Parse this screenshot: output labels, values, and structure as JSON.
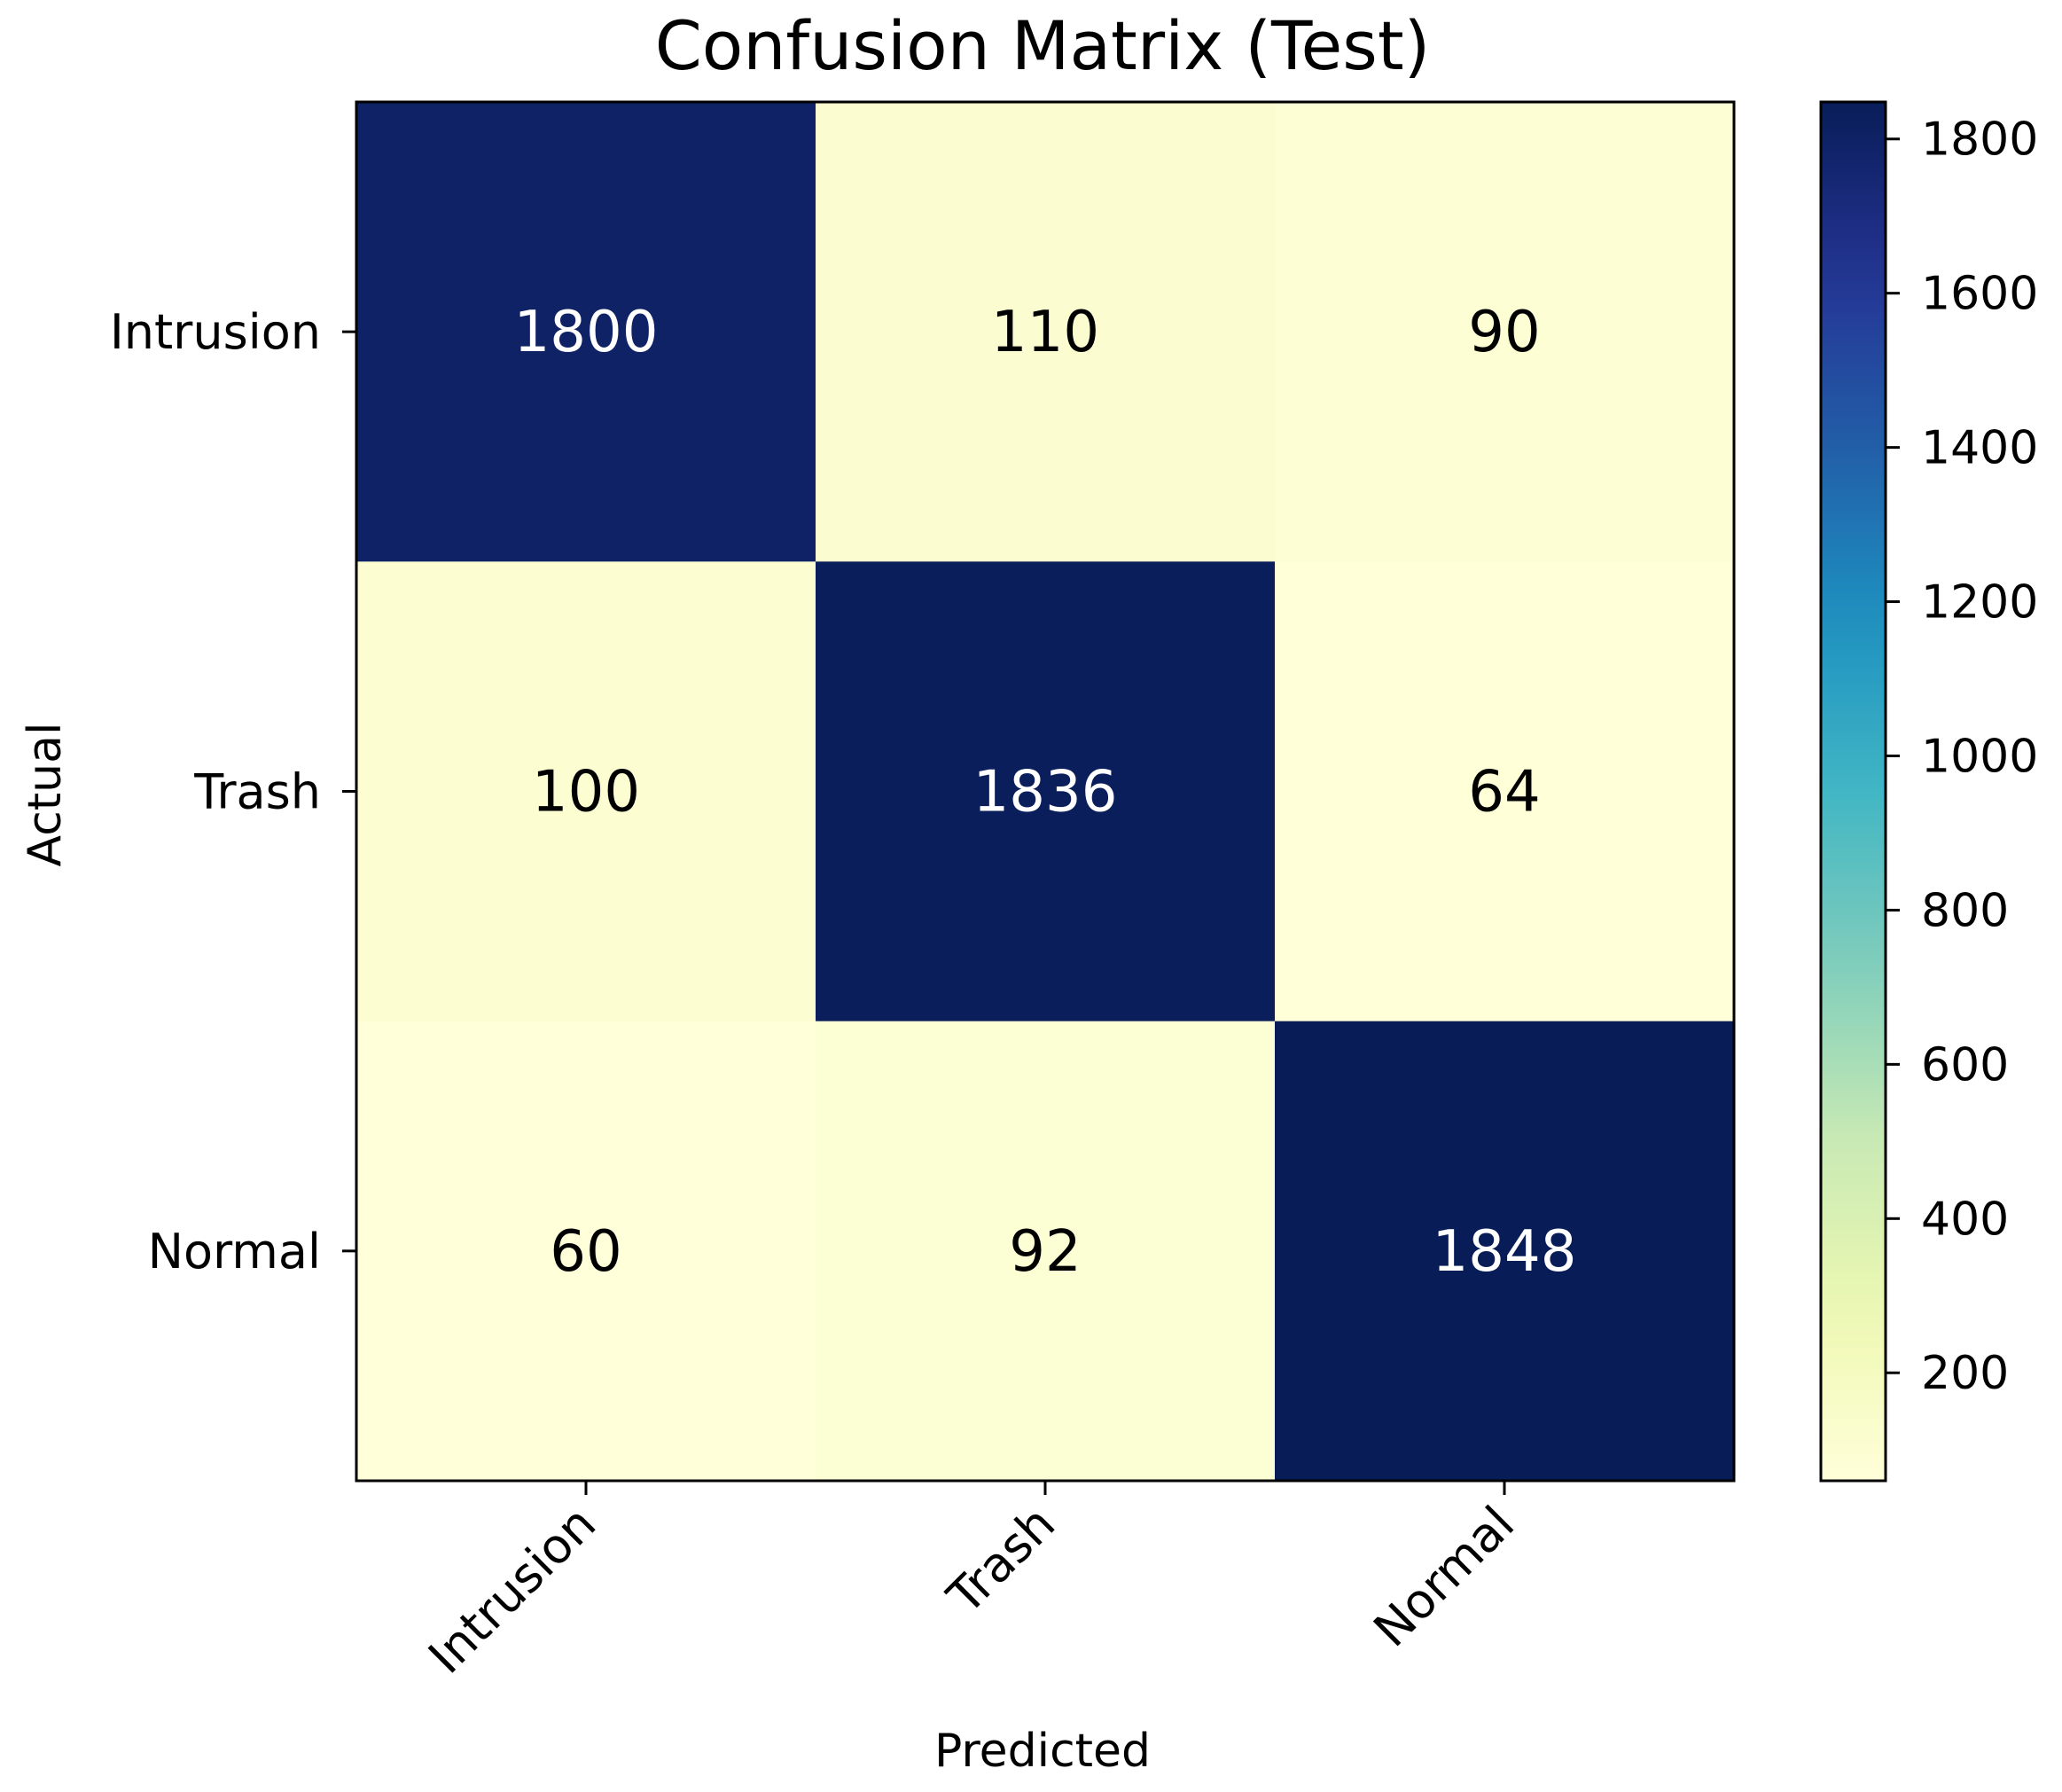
{
  "chart_data": {
    "type": "heatmap",
    "title": "Confusion Matrix (Test)",
    "xlabel": "Predicted",
    "ylabel": "Actual",
    "x_categories": [
      "Intrusion",
      "Trash",
      "Normal"
    ],
    "y_categories": [
      "Intrusion",
      "Trash",
      "Normal"
    ],
    "values": [
      [
        1800,
        110,
        90
      ],
      [
        100,
        1836,
        64
      ],
      [
        60,
        92,
        1848
      ]
    ],
    "colormap": "YlGnBu",
    "color_range": [
      60,
      1848
    ],
    "colorbar_ticks": [
      200,
      400,
      600,
      800,
      1000,
      1200,
      1400,
      1600,
      1800
    ],
    "annotation_colors": {
      "light_cell_text": "#000000",
      "dark_cell_text": "#ffffff"
    }
  }
}
